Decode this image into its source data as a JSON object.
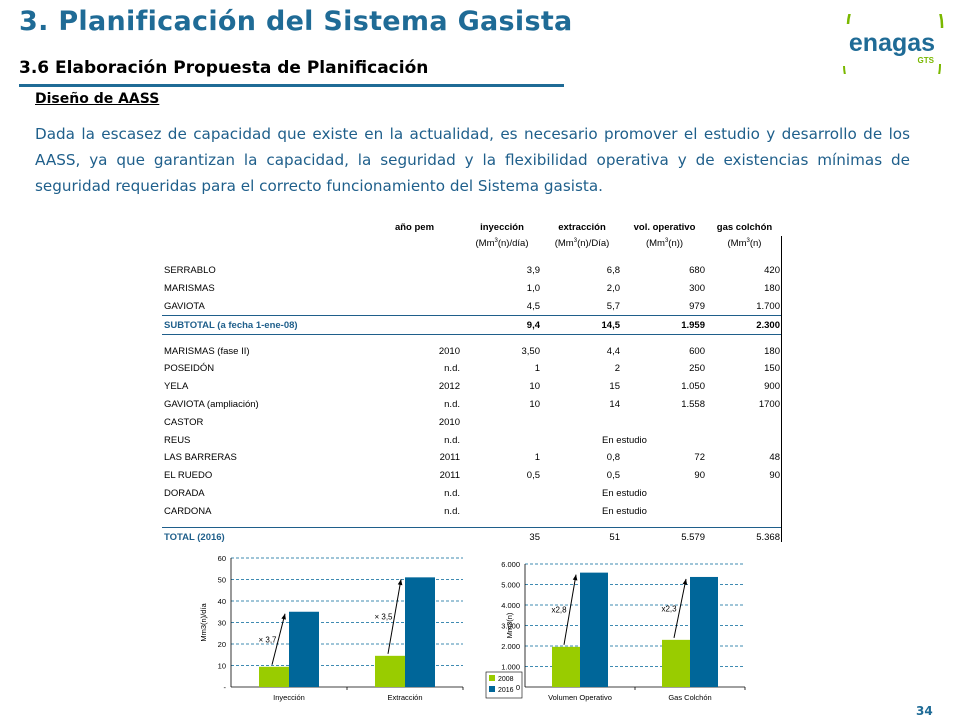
{
  "slide": {
    "title": "3. Planificación del Sistema Gasista",
    "subtitle": "3.6 Elaboración  Propuesta de Planificación",
    "section_heading": "Diseño de AASS",
    "paragraph": "Dada la escasez de capacidad que existe en la actualidad, es necesario promover el estudio y desarrollo de los AASS, ya que garantizan la capacidad, la seguridad y la flexibilidad operativa y de existencias mínimas de seguridad requeridas para el correcto funcionamiento del Sistema gasista.",
    "page_number": "34"
  },
  "logo": {
    "brand": "enagas",
    "sub": "GTS",
    "colors": {
      "blue": "#1f6b96",
      "green": "#7ab800"
    }
  },
  "table": {
    "headers": [
      "",
      "año pem",
      "inyección",
      "extracción",
      "vol. operativo",
      "gas colchón"
    ],
    "units": [
      {
        "base": "(Mm",
        "sup": "3",
        "rest": "(n)/día)"
      },
      {
        "base": "(Mm",
        "sup": "3",
        "rest": "(n)/Día)"
      },
      {
        "base": "(Mm",
        "sup": "3",
        "rest": "(n))"
      },
      {
        "base": "(Mm",
        "sup": "3",
        "rest": "(n)"
      }
    ],
    "existing_rows": [
      {
        "name": "SERRABLO",
        "year": "",
        "iny": "3,9",
        "ext": "6,8",
        "vol": "680",
        "gas": "420"
      },
      {
        "name": "MARISMAS",
        "year": "",
        "iny": "1,0",
        "ext": "2,0",
        "vol": "300",
        "gas": "180"
      },
      {
        "name": "GAVIOTA",
        "year": "",
        "iny": "4,5",
        "ext": "5,7",
        "vol": "979",
        "gas": "1.700"
      }
    ],
    "subtotal": {
      "name": "SUBTOTAL  (a fecha 1-ene-08)",
      "iny": "9,4",
      "ext": "14,5",
      "vol": "1.959",
      "gas": "2.300"
    },
    "planned_rows": [
      {
        "name": "MARISMAS (fase II)",
        "year": "2010",
        "iny": "3,50",
        "ext": "4,4",
        "vol": "600",
        "gas": "180",
        "note": ""
      },
      {
        "name": "POSEIDÓN",
        "year": "n.d.",
        "iny": "1",
        "ext": "2",
        "vol": "250",
        "gas": "150",
        "note": ""
      },
      {
        "name": "YELA",
        "year": "2012",
        "iny": "10",
        "ext": "15",
        "vol": "1.050",
        "gas": "900",
        "note": ""
      },
      {
        "name": "GAVIOTA (ampliación)",
        "year": "n.d.",
        "iny": "10",
        "ext": "14",
        "vol": "1.558",
        "gas": "1700",
        "note": ""
      },
      {
        "name": "CASTOR",
        "year": "2010",
        "iny": "",
        "ext": "",
        "vol": "",
        "gas": "",
        "note": ""
      },
      {
        "name": "REUS",
        "year": "n.d.",
        "iny": "",
        "ext": "",
        "vol": "",
        "gas": "",
        "note": "En estudio"
      },
      {
        "name": "LAS BARRERAS",
        "year": "2011",
        "iny": "1",
        "ext": "0,8",
        "vol": "72",
        "gas": "48",
        "note": ""
      },
      {
        "name": "EL RUEDO",
        "year": "2011",
        "iny": "0,5",
        "ext": "0,5",
        "vol": "90",
        "gas": "90",
        "note": ""
      },
      {
        "name": "DORADA",
        "year": "n.d.",
        "iny": "",
        "ext": "",
        "vol": "",
        "gas": "",
        "note": "En estudio"
      },
      {
        "name": "CARDONA",
        "year": "n.d.",
        "iny": "",
        "ext": "",
        "vol": "",
        "gas": "",
        "note": "En estudio"
      }
    ],
    "total": {
      "name": "TOTAL (2016)",
      "iny": "35",
      "ext": "51",
      "vol": "5.579",
      "gas": "5.368"
    }
  },
  "chart_data": [
    {
      "type": "bar",
      "categories": [
        "Inyección",
        "Extracción"
      ],
      "series": [
        {
          "name": "2008",
          "values": [
            9.4,
            14.5
          ]
        },
        {
          "name": "2016",
          "values": [
            35,
            51
          ]
        }
      ],
      "ylabel": "Mm3(n)/día",
      "ylim": [
        0,
        60
      ],
      "yticks": [
        "-",
        "10",
        "20",
        "30",
        "40",
        "50",
        "60"
      ],
      "annotations": [
        "× 3,7",
        "× 3,5"
      ],
      "grid": true,
      "colors": [
        "#99cc00",
        "#006699"
      ]
    },
    {
      "type": "bar",
      "categories": [
        "Volumen Operativo",
        "Gas Colchón"
      ],
      "series": [
        {
          "name": "2008",
          "values": [
            1959,
            2300
          ]
        },
        {
          "name": "2016",
          "values": [
            5579,
            5368
          ]
        }
      ],
      "ylabel": "Mm3(n)",
      "ylim": [
        0,
        6000
      ],
      "yticks": [
        "0",
        "1.000",
        "2.000",
        "3.000",
        "4.000",
        "5.000",
        "6.000"
      ],
      "annotations": [
        "x2,8",
        "x2,3"
      ],
      "legend": [
        "2008",
        "2016"
      ],
      "legend_position": "bottom-left",
      "grid": true,
      "colors": [
        "#99cc00",
        "#006699"
      ]
    }
  ]
}
